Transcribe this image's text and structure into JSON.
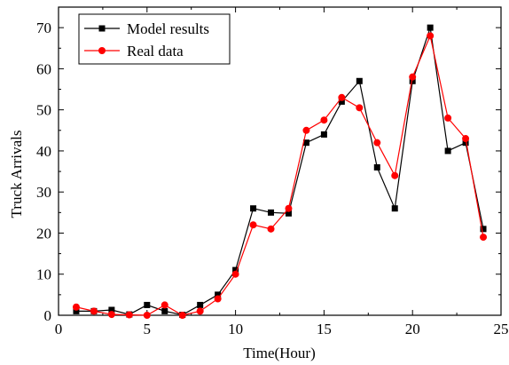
{
  "chart_data": {
    "type": "line",
    "xlabel": "Time(Hour)",
    "ylabel": "Truck Arrivals",
    "xlim": [
      0,
      25
    ],
    "ylim": [
      0,
      75
    ],
    "xticks": [
      0,
      5,
      10,
      15,
      20,
      25
    ],
    "yticks": [
      0,
      10,
      20,
      30,
      40,
      50,
      60,
      70
    ],
    "grid": false,
    "legend_position": "top-left",
    "x": [
      1,
      2,
      3,
      4,
      5,
      6,
      7,
      8,
      9,
      10,
      11,
      12,
      13,
      14,
      15,
      16,
      17,
      18,
      19,
      20,
      21,
      22,
      23,
      24
    ],
    "series": [
      {
        "name": "Model results",
        "color": "#000000",
        "marker": "square",
        "values": [
          1,
          1,
          1.3,
          0.2,
          2.5,
          1,
          0.1,
          2.5,
          5,
          11,
          26,
          25,
          24.8,
          42,
          44,
          52,
          57,
          36,
          26,
          57,
          70,
          40,
          42,
          21
        ]
      },
      {
        "name": "Real data",
        "color": "#ff0000",
        "marker": "circle",
        "values": [
          2,
          1,
          0.2,
          0.1,
          0,
          2.5,
          0,
          1,
          4,
          10,
          22,
          21,
          26,
          45,
          47.5,
          53,
          50.5,
          42,
          34,
          58,
          68,
          48,
          43,
          19
        ]
      }
    ]
  }
}
